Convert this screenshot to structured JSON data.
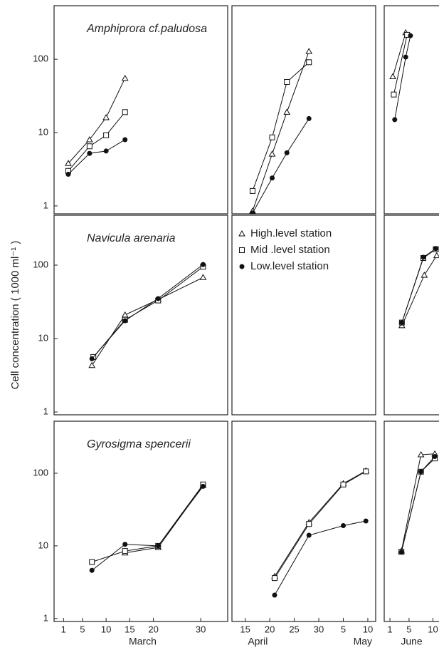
{
  "chart_data": [
    {
      "type": "line",
      "title": "Amphiprora cf.paludosa",
      "log_y": true,
      "xlim": [
        -1,
        35.7
      ],
      "ylim": [
        0.78,
        537
      ],
      "yticks": [
        1,
        10,
        100
      ],
      "series": [
        {
          "marker": "triangle",
          "x": [
            2,
            6.5,
            10,
            14
          ],
          "values": [
            3.8,
            8,
            16,
            55
          ]
        },
        {
          "marker": "square",
          "x": [
            2,
            6.5,
            10,
            14
          ],
          "values": [
            3,
            6.5,
            9.2,
            19
          ]
        },
        {
          "marker": "circle",
          "x": [
            2,
            6.5,
            10,
            14
          ],
          "values": [
            2.7,
            5.2,
            5.6,
            8
          ]
        }
      ]
    },
    {
      "type": "line",
      "log_y": true,
      "xlim": [
        12.3,
        41.6
      ],
      "ylim": [
        0.78,
        537
      ],
      "series": [
        {
          "marker": "triangle",
          "x": [
            16.5,
            20.5,
            23.5,
            28
          ],
          "values": [
            0.85,
            5.1,
            19,
            128
          ]
        },
        {
          "marker": "square",
          "x": [
            16.5,
            20.5,
            23.5,
            28
          ],
          "values": [
            1.6,
            8.6,
            49,
            91
          ]
        },
        {
          "marker": "circle",
          "x": [
            16.5,
            20.5,
            23.5,
            28
          ],
          "values": [
            0.8,
            2.4,
            5.3,
            15.5
          ]
        }
      ]
    },
    {
      "type": "line",
      "log_y": true,
      "xlim": [
        -0.2,
        14.7
      ],
      "ylim": [
        0.78,
        537
      ],
      "series": [
        {
          "marker": "triangle",
          "x": [
            1.6,
            4.3
          ],
          "values": [
            58,
            230
          ]
        },
        {
          "marker": "square",
          "x": [
            1.8,
            4.6
          ],
          "values": [
            33,
            215
          ]
        },
        {
          "marker": "circle",
          "x": [
            2,
            4.3,
            5.3
          ],
          "values": [
            15,
            107,
            210
          ]
        }
      ]
    },
    {
      "type": "line",
      "title": "Navicula arenaria",
      "ylabel": "Cell concentration ( 1000 ml⁻¹ )",
      "log_y": true,
      "xlim": [
        -1,
        35.7
      ],
      "ylim": [
        0.915,
        478
      ],
      "yticks": [
        1,
        10,
        100
      ],
      "series": [
        {
          "marker": "triangle",
          "x": [
            7,
            14,
            21,
            30.5
          ],
          "values": [
            4.3,
            21,
            34,
            68
          ]
        },
        {
          "marker": "square",
          "x": [
            7.3,
            14,
            21,
            30.5
          ],
          "values": [
            5.6,
            18,
            33,
            95
          ]
        },
        {
          "marker": "circle",
          "x": [
            7,
            14,
            21,
            30.5
          ],
          "values": [
            5.3,
            17.5,
            35,
            102
          ]
        }
      ]
    },
    {
      "type": "line",
      "log_y": true,
      "xlim": [
        12.3,
        41.6
      ],
      "ylim": [
        0.915,
        478
      ],
      "legend": "upper left",
      "series": [
        {
          "name": "High.level station",
          "marker": "triangle",
          "x": [],
          "values": []
        },
        {
          "name": "Mid .level station",
          "marker": "square",
          "x": [],
          "values": []
        },
        {
          "name": "Low.level station",
          "marker": "circle",
          "x": [],
          "values": []
        }
      ]
    },
    {
      "type": "line",
      "log_y": true,
      "xlim": [
        -0.2,
        14.7
      ],
      "ylim": [
        0.915,
        478
      ],
      "series": [
        {
          "marker": "triangle",
          "x": [
            3.5,
            8.2,
            10.8
          ],
          "values": [
            15,
            73,
            135
          ]
        },
        {
          "marker": "square",
          "x": [
            3.5,
            8,
            10.6
          ],
          "values": [
            16.5,
            125,
            165
          ]
        },
        {
          "marker": "circle",
          "x": [
            3.5,
            8,
            10.6
          ],
          "values": [
            16.5,
            128,
            168
          ]
        }
      ]
    },
    {
      "type": "line",
      "title": "Gyrosigma spencerii",
      "log_y": true,
      "xlim": [
        -1,
        35.7
      ],
      "ylim": [
        0.91,
        520
      ],
      "yticks": [
        1,
        10,
        100
      ],
      "xticks": [
        1,
        5,
        10,
        15,
        20,
        30
      ],
      "xlabels": [
        "March"
      ],
      "series": [
        {
          "marker": "triangle",
          "x": [
            14,
            21,
            30.5
          ],
          "values": [
            8,
            9.5,
            68
          ]
        },
        {
          "marker": "square",
          "x": [
            7,
            14,
            21,
            30.5
          ],
          "values": [
            6,
            8.5,
            10,
            70
          ]
        },
        {
          "marker": "circle",
          "x": [
            7,
            14,
            21,
            30.5
          ],
          "values": [
            4.6,
            10.5,
            10,
            66
          ]
        }
      ]
    },
    {
      "type": "line",
      "log_y": true,
      "xlim": [
        12.3,
        41.6
      ],
      "ylim": [
        0.91,
        520
      ],
      "xticks": [
        15,
        20,
        25,
        30,
        {
          "value": 35,
          "label": "5"
        },
        {
          "value": 40,
          "label": "10"
        }
      ],
      "xlabels": [
        "April",
        "May"
      ],
      "series": [
        {
          "marker": "triangle",
          "x": [
            21,
            28,
            35,
            39.6
          ],
          "values": [
            3.8,
            21,
            72,
            108
          ]
        },
        {
          "marker": "square",
          "x": [
            21,
            28,
            35,
            39.6
          ],
          "values": [
            3.6,
            20,
            70,
            106
          ]
        },
        {
          "marker": "circle",
          "x": [
            21,
            28,
            35,
            39.6
          ],
          "values": [
            2.1,
            14,
            19,
            22
          ]
        }
      ]
    },
    {
      "type": "line",
      "log_y": true,
      "xlim": [
        -0.2,
        14.7
      ],
      "ylim": [
        0.91,
        520
      ],
      "xticks": [
        1,
        5,
        10
      ],
      "xlabels": [
        "June"
      ],
      "series": [
        {
          "marker": "triangle",
          "x": [
            3.4,
            7.5,
            10.4
          ],
          "values": [
            8.5,
            180,
            185
          ]
        },
        {
          "marker": "square",
          "x": [
            3.4,
            7.5,
            10.4
          ],
          "values": [
            8.3,
            105,
            160
          ]
        },
        {
          "marker": "circle",
          "x": [
            3.4,
            7.5,
            10.4
          ],
          "values": [
            8.2,
            105,
            170
          ]
        }
      ]
    }
  ]
}
